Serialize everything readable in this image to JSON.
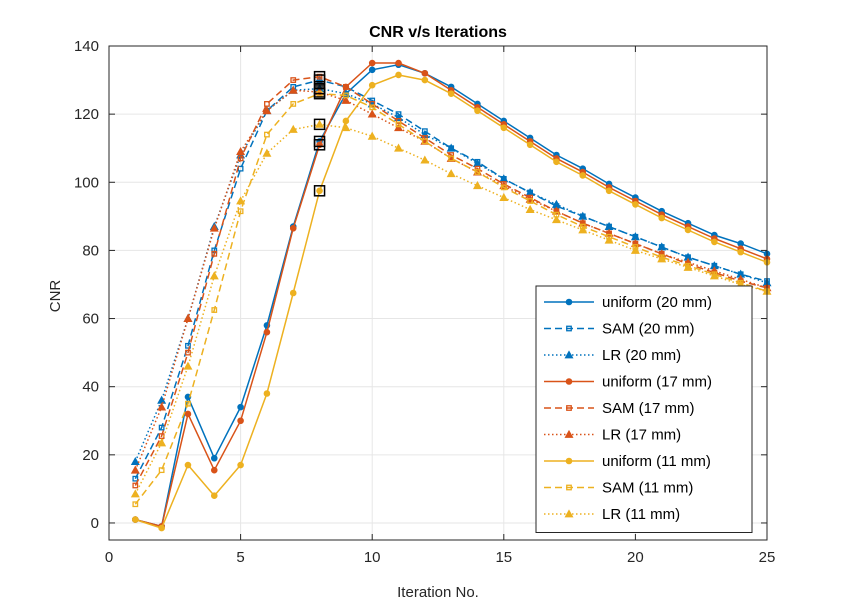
{
  "chart_data": {
    "type": "line",
    "title": "CNR v/s Iterations",
    "xlabel": "Iteration No.",
    "ylabel": "CNR",
    "xlim": [
      0,
      25
    ],
    "ylim": [
      -5,
      140
    ],
    "xticks": [
      0,
      5,
      10,
      15,
      20,
      25
    ],
    "yticks": [
      0,
      20,
      40,
      60,
      80,
      100,
      120,
      140
    ],
    "grid": true,
    "legend_position": "bottom-right",
    "x": [
      1,
      2,
      3,
      4,
      5,
      6,
      7,
      8,
      9,
      10,
      11,
      12,
      13,
      14,
      15,
      16,
      17,
      18,
      19,
      20,
      21,
      22,
      23,
      24,
      25
    ],
    "series": [
      {
        "name": "uniform (20 mm)",
        "color": "#0072BD",
        "linestyle": "solid",
        "marker": "circle",
        "values": [
          1,
          -1,
          37,
          19,
          34,
          58,
          87,
          112,
          126,
          133,
          134.5,
          132,
          128,
          123,
          118,
          113,
          108,
          104,
          99.5,
          95.5,
          91.5,
          88,
          84.5,
          82,
          79
        ]
      },
      {
        "name": "SAM (20 mm)",
        "color": "#0072BD",
        "linestyle": "dashed",
        "marker": "square",
        "values": [
          13,
          28,
          52,
          80,
          104,
          121,
          128,
          130,
          128,
          124,
          120,
          115,
          110,
          106,
          101,
          97,
          93,
          90,
          87,
          84,
          81,
          78,
          75.5,
          73,
          71
        ]
      },
      {
        "name": "LR (20 mm)",
        "color": "#0072BD",
        "linestyle": "dotted",
        "marker": "triangle",
        "values": [
          18,
          36,
          60,
          87,
          108,
          121,
          127,
          127.5,
          126,
          123,
          119,
          114,
          110,
          105.5,
          101,
          97,
          93.5,
          90,
          87,
          84,
          81,
          78,
          75.5,
          73,
          70.5
        ]
      },
      {
        "name": "uniform (17 mm)",
        "color": "#D95319",
        "linestyle": "solid",
        "marker": "circle",
        "values": [
          1,
          -1,
          32,
          15.5,
          30,
          56,
          86.5,
          111,
          128,
          135,
          135,
          132,
          127,
          122,
          117,
          112,
          107,
          103,
          98.5,
          94.5,
          90.5,
          87,
          83.5,
          80.5,
          77.5
        ]
      },
      {
        "name": "SAM (17 mm)",
        "color": "#D95319",
        "linestyle": "dashed",
        "marker": "square",
        "values": [
          11,
          25.5,
          50,
          79,
          107,
          123,
          130,
          131,
          128,
          123,
          118,
          113,
          108,
          104,
          99.5,
          95.5,
          91.5,
          88,
          85,
          82,
          79,
          76,
          73.5,
          71,
          69
        ]
      },
      {
        "name": "LR (17 mm)",
        "color": "#D95319",
        "linestyle": "dotted",
        "marker": "triangle",
        "values": [
          15.5,
          34,
          60,
          86.5,
          109,
          121,
          127,
          126.5,
          124,
          120,
          116,
          112,
          107,
          103,
          99,
          95,
          91.5,
          88,
          85,
          82,
          79,
          76.5,
          74,
          71.5,
          69
        ]
      },
      {
        "name": "uniform (11 mm)",
        "color": "#EDB120",
        "linestyle": "solid",
        "marker": "circle",
        "values": [
          1,
          -1.5,
          17,
          8,
          17,
          38,
          67.5,
          97.5,
          118,
          128.5,
          131.5,
          130,
          126,
          121,
          116,
          111,
          106,
          102,
          97.5,
          93.5,
          89.5,
          86,
          82.5,
          79.5,
          76.5
        ]
      },
      {
        "name": "SAM (11 mm)",
        "color": "#EDB120",
        "linestyle": "dashed",
        "marker": "square",
        "values": [
          5.5,
          15.5,
          35,
          62.5,
          91.5,
          114,
          123,
          126,
          125.5,
          122,
          117,
          112,
          107,
          103,
          98.5,
          94.5,
          90.5,
          87,
          84,
          81,
          78,
          75.5,
          73,
          70.5,
          68
        ]
      },
      {
        "name": "LR (11 mm)",
        "color": "#EDB120",
        "linestyle": "dotted",
        "marker": "triangle",
        "values": [
          8.5,
          23.5,
          46,
          72.5,
          94.5,
          108.5,
          115.5,
          117,
          116,
          113.5,
          110,
          106.5,
          102.5,
          99,
          95.5,
          92,
          89,
          86,
          83,
          80,
          77.5,
          75,
          72.5,
          70,
          68
        ]
      }
    ],
    "highlighted_points": [
      {
        "x": 8,
        "y": 112
      },
      {
        "x": 8,
        "y": 130
      },
      {
        "x": 8,
        "y": 127.5
      },
      {
        "x": 8,
        "y": 111
      },
      {
        "x": 8,
        "y": 131
      },
      {
        "x": 8,
        "y": 126.5
      },
      {
        "x": 8,
        "y": 97.5
      },
      {
        "x": 8,
        "y": 126
      },
      {
        "x": 8,
        "y": 117
      }
    ]
  }
}
